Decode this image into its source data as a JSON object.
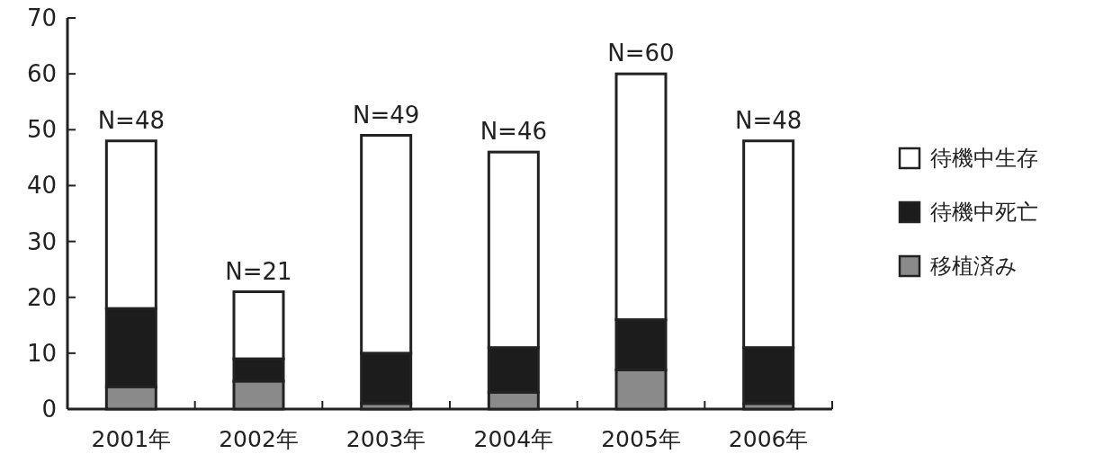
{
  "chart_data": {
    "type": "bar",
    "stacked": true,
    "categories": [
      "2001年",
      "2002年",
      "2003年",
      "2004年",
      "2005年",
      "2006年"
    ],
    "series": [
      {
        "name": "移植済み",
        "color": "#8a8a8a",
        "values": [
          4,
          5,
          1,
          3,
          7,
          1
        ]
      },
      {
        "name": "待機中死亡",
        "color": "#1c1c1c",
        "values": [
          14,
          4,
          9,
          8,
          9,
          10
        ]
      },
      {
        "name": "待機中生存",
        "color": "#ffffff",
        "values": [
          30,
          12,
          39,
          35,
          44,
          37
        ]
      }
    ],
    "totals": [
      "N=48",
      "N=21",
      "N=49",
      "N=46",
      "N=60",
      "N=48"
    ],
    "ylim": [
      0,
      70
    ],
    "yticks": [
      0,
      10,
      20,
      30,
      40,
      50,
      60,
      70
    ],
    "legend": "right",
    "grid": false
  }
}
